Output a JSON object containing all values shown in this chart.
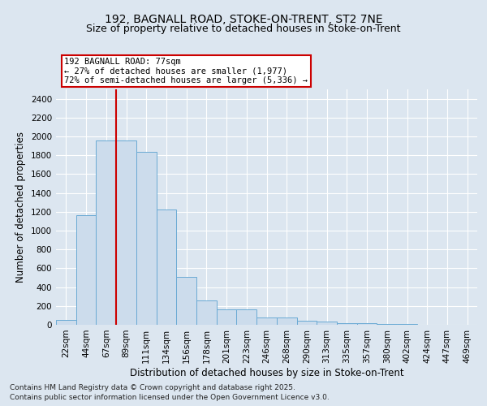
{
  "title_line1": "192, BAGNALL ROAD, STOKE-ON-TRENT, ST2 7NE",
  "title_line2": "Size of property relative to detached houses in Stoke-on-Trent",
  "xlabel": "Distribution of detached houses by size in Stoke-on-Trent",
  "ylabel": "Number of detached properties",
  "categories": [
    "22sqm",
    "44sqm",
    "67sqm",
    "89sqm",
    "111sqm",
    "134sqm",
    "156sqm",
    "178sqm",
    "201sqm",
    "223sqm",
    "246sqm",
    "268sqm",
    "290sqm",
    "313sqm",
    "335sqm",
    "357sqm",
    "380sqm",
    "402sqm",
    "424sqm",
    "447sqm",
    "469sqm"
  ],
  "values": [
    50,
    1160,
    1960,
    1960,
    1840,
    1220,
    510,
    260,
    165,
    165,
    80,
    80,
    40,
    35,
    20,
    20,
    10,
    5,
    3,
    2,
    2
  ],
  "bar_color": "#ccdcec",
  "bar_edge_color": "#6aaad4",
  "vline_color": "#cc0000",
  "vline_pos": 2.5,
  "annotation_text": "192 BAGNALL ROAD: 77sqm\n← 27% of detached houses are smaller (1,977)\n72% of semi-detached houses are larger (5,336) →",
  "annotation_box_facecolor": "#ffffff",
  "annotation_box_edgecolor": "#cc0000",
  "ylim": [
    0,
    2500
  ],
  "yticks": [
    0,
    200,
    400,
    600,
    800,
    1000,
    1200,
    1400,
    1600,
    1800,
    2000,
    2200,
    2400
  ],
  "background_color": "#dce6f0",
  "plot_bg_color": "#dce6f0",
  "grid_color": "#ffffff",
  "footnote1": "Contains HM Land Registry data © Crown copyright and database right 2025.",
  "footnote2": "Contains public sector information licensed under the Open Government Licence v3.0.",
  "title_fontsize": 10,
  "subtitle_fontsize": 9,
  "axis_label_fontsize": 8.5,
  "tick_fontsize": 7.5,
  "annotation_fontsize": 7.5,
  "footnote_fontsize": 6.5
}
